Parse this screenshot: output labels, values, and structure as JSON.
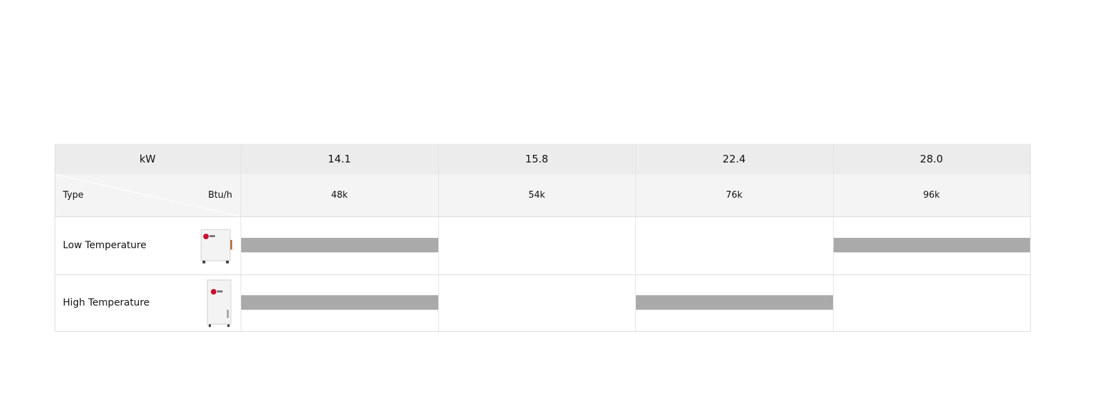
{
  "header": {
    "capacity_unit": "kW",
    "capacity_values": [
      "14.1",
      "15.8",
      "22.4",
      "28.0"
    ],
    "type_label": "Type",
    "btu_unit": "Btu/h",
    "btu_values": [
      "48k",
      "54k",
      "76k",
      "96k"
    ]
  },
  "rows": [
    {
      "label": "Low Temperature",
      "available": [
        true,
        false,
        false,
        true
      ]
    },
    {
      "label": "High Temperature",
      "available": [
        true,
        false,
        true,
        false
      ]
    }
  ]
}
